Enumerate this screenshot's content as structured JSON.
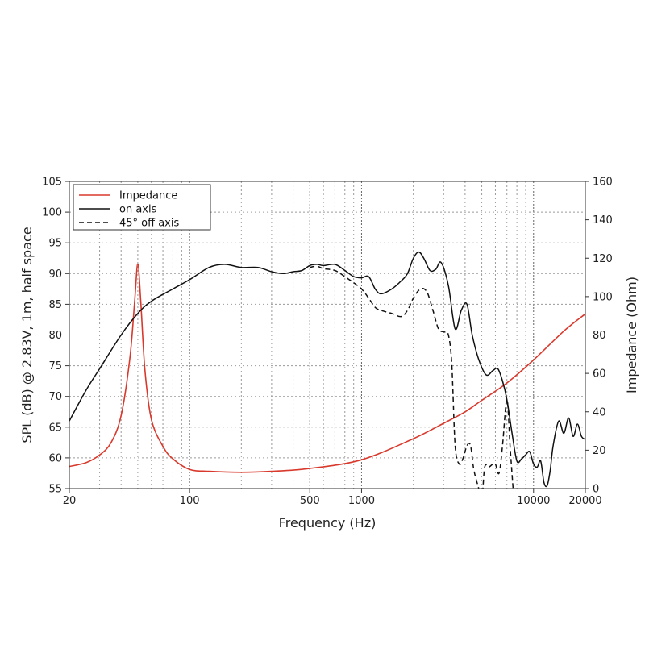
{
  "chart_data": {
    "type": "line",
    "xlabel": "Frequency (Hz)",
    "ylabel": "SPL (dB) @ 2.83V, 1m, half space",
    "y2label": "Impedance (Ohm)",
    "x_scale": "log",
    "xlim": [
      20,
      20000
    ],
    "ylim": [
      55,
      105
    ],
    "y2lim": [
      0,
      160
    ],
    "x_ticks": [
      20,
      100,
      500,
      1000,
      10000,
      20000
    ],
    "y_ticks": [
      55,
      60,
      65,
      70,
      75,
      80,
      85,
      90,
      95,
      100,
      105
    ],
    "y2_ticks": [
      0,
      20,
      40,
      60,
      80,
      100,
      120,
      140,
      160
    ],
    "grid": true,
    "legend_position": "top-left",
    "legend_order": [
      "impedance",
      "on_axis",
      "off_axis_45"
    ],
    "series": {
      "impedance": {
        "name": "Impedance",
        "color": "#d9392c",
        "style": "solid",
        "axis": "right",
        "x": [
          20,
          25,
          30,
          35,
          40,
          45,
          48,
          50,
          52,
          55,
          60,
          70,
          80,
          100,
          130,
          200,
          300,
          500,
          1000,
          2000,
          3000,
          4000,
          5000,
          7000,
          10000,
          15000,
          20000
        ],
        "y": [
          11.5,
          13.5,
          17.5,
          24,
          38,
          68,
          98,
          117,
          98,
          62,
          36,
          22,
          15.5,
          10,
          9,
          8.5,
          9,
          10.5,
          15,
          26,
          34,
          40,
          46,
          55,
          67,
          82,
          91
        ]
      },
      "on_axis": {
        "name": "on axis",
        "color": "#111111",
        "style": "solid",
        "axis": "left",
        "x": [
          20,
          25,
          30,
          40,
          50,
          60,
          80,
          100,
          130,
          160,
          200,
          250,
          300,
          350,
          400,
          450,
          500,
          550,
          600,
          700,
          800,
          900,
          1000,
          1100,
          1200,
          1300,
          1500,
          1700,
          1850,
          2000,
          2150,
          2300,
          2500,
          2700,
          2900,
          3200,
          3500,
          3800,
          4100,
          4400,
          4800,
          5300,
          5800,
          6200,
          6600,
          7000,
          7500,
          8000,
          8500,
          9000,
          9500,
          10000,
          10500,
          11000,
          11500,
          12000,
          12500,
          13000,
          14000,
          15000,
          16000,
          17000,
          18000,
          19000,
          20000
        ],
        "y": [
          66,
          71,
          74.5,
          80,
          83.5,
          85.5,
          87.5,
          89,
          91,
          91.5,
          91,
          91,
          90.3,
          90,
          90.3,
          90.5,
          91.3,
          91.5,
          91.3,
          91.5,
          90.5,
          89.5,
          89.3,
          89.5,
          87.5,
          86.7,
          87.5,
          88.8,
          90,
          92.5,
          93.5,
          92.5,
          90.5,
          90.7,
          91.8,
          88,
          81,
          84,
          85,
          80,
          76,
          73.5,
          74.2,
          74.5,
          72.5,
          69.5,
          64,
          59.5,
          59.8,
          60.5,
          61,
          59,
          58.5,
          59.5,
          56,
          55.5,
          58,
          62,
          66,
          64,
          66.5,
          63.5,
          65.5,
          63.5,
          63
        ]
      },
      "off_axis_45": {
        "name": "45° off axis",
        "color": "#111111",
        "style": "dashed",
        "axis": "left",
        "x": [
          500,
          550,
          600,
          700,
          800,
          900,
          1000,
          1100,
          1200,
          1300,
          1500,
          1700,
          1850,
          2000,
          2200,
          2400,
          2600,
          2800,
          3000,
          3200,
          3350,
          3500,
          3700,
          3900,
          4100,
          4300,
          4500,
          4800,
          5000,
          5200,
          5500,
          5800,
          6000,
          6300,
          6600,
          7000,
          7300,
          7600
        ],
        "y": [
          91,
          91.2,
          90.8,
          90.5,
          89.5,
          88.5,
          87.5,
          86,
          84.5,
          84,
          83.5,
          83,
          84,
          86,
          87.5,
          87,
          84,
          81,
          80.5,
          80,
          75,
          62,
          59,
          60,
          62,
          62,
          58,
          55,
          53,
          58.5,
          58.5,
          59,
          59,
          57.5,
          62,
          69.5,
          62,
          55
        ]
      }
    }
  }
}
